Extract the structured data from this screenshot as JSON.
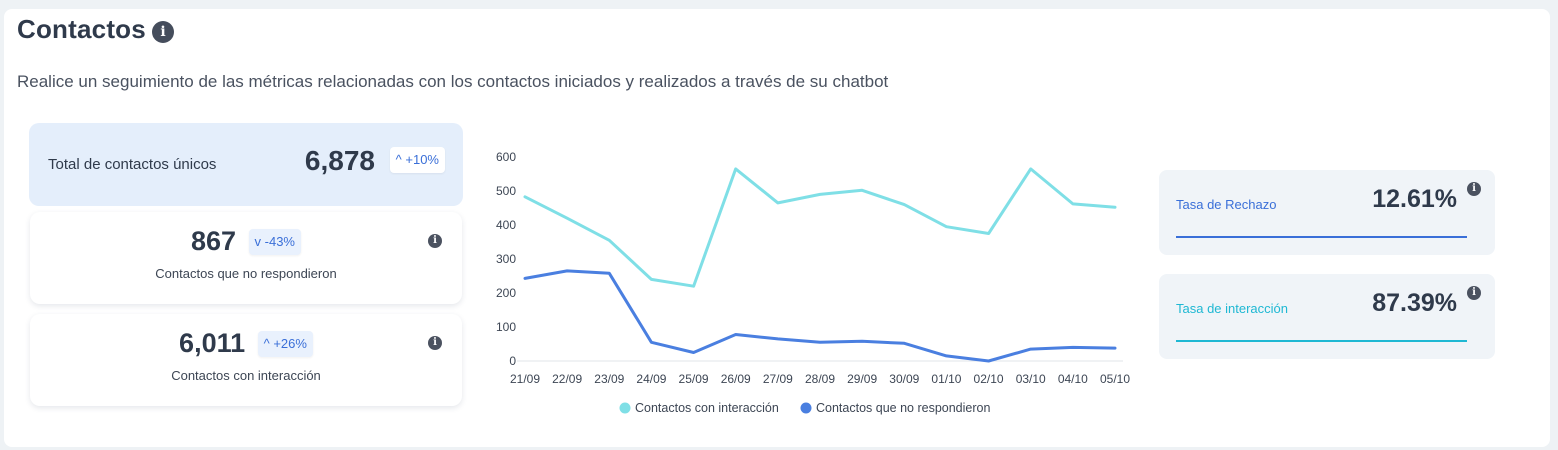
{
  "header": {
    "title": "Contactos",
    "subtitle": "Realice un seguimiento de las métricas relacionadas con los contactos iniciados y realizados a través de su chatbot"
  },
  "kpis": {
    "total": {
      "label": "Total de contactos únicos",
      "value": "6,878",
      "change": "+10%",
      "direction": "up"
    },
    "no_response": {
      "value": "867",
      "change": "-43%",
      "direction": "down",
      "label": "Contactos que no respondieron"
    },
    "interaction": {
      "value": "6,011",
      "change": "+26%",
      "direction": "up",
      "label": "Contactos con interacción"
    }
  },
  "rates": {
    "rejection": {
      "label": "Tasa de Rechazo",
      "value": "12.61%",
      "color": "#3a6fd8"
    },
    "interaction": {
      "label": "Tasa de interacción",
      "value": "87.39%",
      "color": "#1fb8d3"
    }
  },
  "icons": {
    "info": "info-icon",
    "up": "chevron-up-icon",
    "down": "chevron-down-icon"
  },
  "chart_data": {
    "type": "line",
    "x": [
      "21/09",
      "22/09",
      "23/09",
      "24/09",
      "25/09",
      "26/09",
      "27/09",
      "28/09",
      "29/09",
      "30/09",
      "01/10",
      "02/10",
      "03/10",
      "04/10",
      "05/10"
    ],
    "yticks": [
      0,
      100,
      200,
      300,
      400,
      500,
      600
    ],
    "ylim": [
      0,
      600
    ],
    "grid": false,
    "legend_position": "bottom",
    "series": [
      {
        "name": "Contactos con interacción",
        "color": "#7fdfe6",
        "values": [
          483,
          420,
          355,
          240,
          220,
          565,
          465,
          490,
          502,
          460,
          395,
          375,
          565,
          462,
          452
        ]
      },
      {
        "name": "Contactos que no respondieron",
        "color": "#4a7fe0",
        "values": [
          243,
          265,
          258,
          55,
          25,
          78,
          65,
          55,
          58,
          52,
          15,
          0,
          35,
          40,
          38
        ]
      }
    ]
  }
}
